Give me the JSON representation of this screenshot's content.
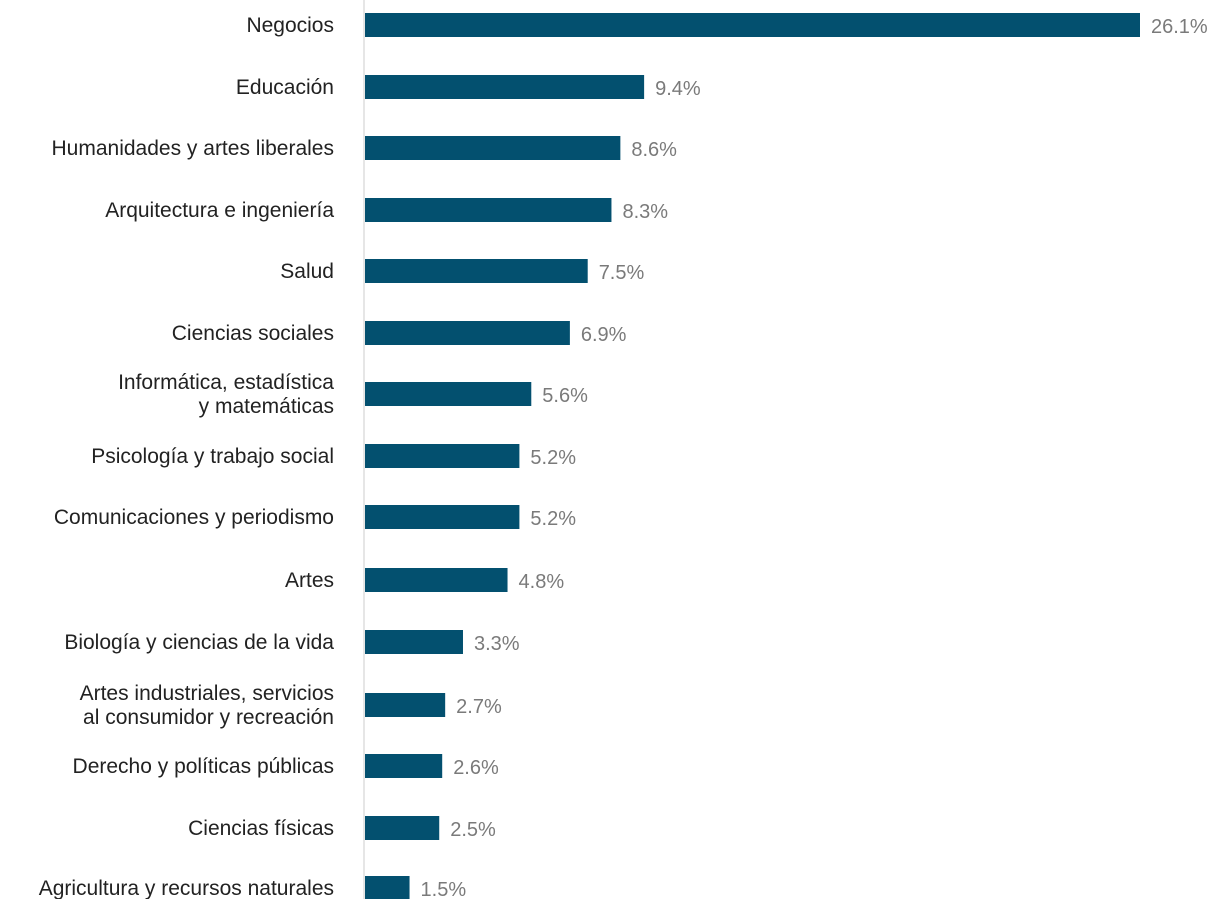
{
  "chart_data": {
    "type": "bar",
    "orientation": "horizontal",
    "categories": [
      "Negocios",
      "Educación",
      "Humanidades y artes liberales",
      "Arquitectura e ingeniería",
      "Salud",
      "Ciencias sociales",
      "Informática, estadística y matemáticas",
      "Psicología y trabajo social",
      "Comunicaciones y periodismo",
      "Artes",
      "Biología y ciencias de la vida",
      "Artes industriales, servicios al consumidor y recreación",
      "Derecho y políticas públicas",
      "Ciencias físicas",
      "Agricultura y recursos naturales"
    ],
    "category_lines": [
      [
        "Negocios"
      ],
      [
        "Educación"
      ],
      [
        "Humanidades y artes liberales"
      ],
      [
        "Arquitectura e ingeniería"
      ],
      [
        "Salud"
      ],
      [
        "Ciencias sociales"
      ],
      [
        "Informática, estadística",
        "y matemáticas"
      ],
      [
        "Psicología y trabajo social"
      ],
      [
        "Comunicaciones y periodismo"
      ],
      [
        "Artes"
      ],
      [
        "Biología y ciencias de la vida"
      ],
      [
        "Artes industriales, servicios",
        "al consumidor y recreación"
      ],
      [
        "Derecho y políticas públicas"
      ],
      [
        "Ciencias físicas"
      ],
      [
        "Agricultura y recursos naturales"
      ]
    ],
    "values": [
      26.1,
      9.4,
      8.6,
      8.3,
      7.5,
      6.9,
      5.6,
      5.2,
      5.2,
      4.8,
      3.3,
      2.7,
      2.6,
      2.5,
      1.5
    ],
    "value_labels": [
      "26.1%",
      "9.4%",
      "8.6%",
      "8.3%",
      "7.5%",
      "6.9%",
      "5.6%",
      "5.2%",
      "5.2%",
      "4.8%",
      "3.3%",
      "2.7%",
      "2.6%",
      "2.5%",
      "1.5%"
    ],
    "title": "",
    "xlabel": "",
    "ylabel": "",
    "xlim": [
      0,
      26.1
    ],
    "grid": false,
    "legend": "none",
    "colors": {
      "bar": "#03506f",
      "axis": "#cccccc",
      "value_label": "#7a7a7a",
      "category_label": "#222222"
    }
  }
}
